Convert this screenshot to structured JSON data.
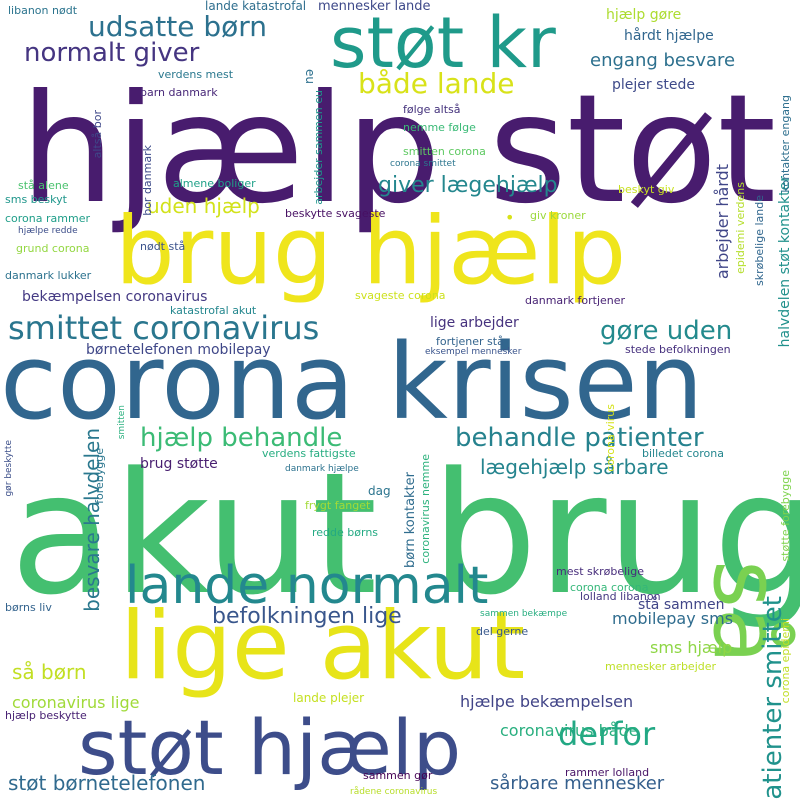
{
  "words": [
    {
      "text": "hjælp støt",
      "size": 150,
      "color": "#481c6e",
      "rot": 0
    },
    {
      "text": "akut brug",
      "size": 168,
      "color": "#44bf70",
      "rot": 0
    },
    {
      "text": "corona krisen",
      "size": 104,
      "color": "#31668e",
      "rot": 0
    },
    {
      "text": "brug hjælp",
      "size": 94,
      "color": "#efe51c",
      "rot": 0
    },
    {
      "text": "lige akut",
      "size": 94,
      "color": "#e7e419",
      "rot": 0
    },
    {
      "text": "støt hjælp",
      "size": 76,
      "color": "#3d4d8a",
      "rot": 0
    },
    {
      "text": "støt kr",
      "size": 70,
      "color": "#1f9a8a",
      "rot": 0
    },
    {
      "text": "så",
      "size": 92,
      "color": "#7ad151",
      "rot": 90
    },
    {
      "text": "lande normalt",
      "size": 52,
      "color": "#23888e",
      "rot": 0
    },
    {
      "text": "smittet coronavirus",
      "size": 32,
      "color": "#2a768e",
      "rot": 0
    },
    {
      "text": "udsatte børn",
      "size": 28,
      "color": "#2c718e",
      "rot": 0
    },
    {
      "text": "normalt giver",
      "size": 26,
      "color": "#453581",
      "rot": 0
    },
    {
      "text": "både lande",
      "size": 28,
      "color": "#d8e219",
      "rot": 0
    },
    {
      "text": "derfor",
      "size": 32,
      "color": "#22a884",
      "rot": 0
    },
    {
      "text": "behandle patienter",
      "size": 26,
      "color": "#26828e",
      "rot": 0
    },
    {
      "text": "hjælp behandle",
      "size": 26,
      "color": "#3bbb75",
      "rot": 0
    },
    {
      "text": "gøre uden",
      "size": 26,
      "color": "#238a8d",
      "rot": 0
    },
    {
      "text": "giver lægehjælp",
      "size": 22,
      "color": "#24878e",
      "rot": 0
    },
    {
      "text": "befolkningen lige",
      "size": 22,
      "color": "#39568c",
      "rot": 0
    },
    {
      "text": "patienter smittet",
      "size": 26,
      "color": "#20928c",
      "rot": -90
    },
    {
      "text": "besvare halvdelen",
      "size": 20,
      "color": "#2a788e",
      "rot": -90
    },
    {
      "text": "lægehjælp sårbare",
      "size": 20,
      "color": "#25848e",
      "rot": 0
    },
    {
      "text": "engang besvare",
      "size": 18,
      "color": "#2d708e",
      "rot": 0
    },
    {
      "text": "uden hjælp",
      "size": 20,
      "color": "#d2e21b",
      "rot": 0
    },
    {
      "text": "så børn",
      "size": 20,
      "color": "#c2df23",
      "rot": 0
    },
    {
      "text": "støt børnetelefonen",
      "size": 20,
      "color": "#306a8e",
      "rot": 0
    },
    {
      "text": "sårbare mennesker",
      "size": 18,
      "color": "#355f8d",
      "rot": 0
    },
    {
      "text": "coronavirus både",
      "size": 16,
      "color": "#29af7f",
      "rot": 0
    },
    {
      "text": "hjælpe bekæmpelsen",
      "size": 16,
      "color": "#414487",
      "rot": 0
    },
    {
      "text": "coronavirus lige",
      "size": 16,
      "color": "#a0da39",
      "rot": 0
    },
    {
      "text": "mobilepay sms",
      "size": 16,
      "color": "#2f6c8e",
      "rot": 0
    },
    {
      "text": "sms hjælp",
      "size": 16,
      "color": "#8ed645",
      "rot": 0
    },
    {
      "text": "stå sammen",
      "size": 14,
      "color": "#404588",
      "rot": 0
    },
    {
      "text": "bekæmpelsen coronavirus",
      "size": 14,
      "color": "#443983",
      "rot": 0
    },
    {
      "text": "børnetelefonen mobilepay",
      "size": 14,
      "color": "#3f4788",
      "rot": 0
    },
    {
      "text": "brug støtte",
      "size": 14,
      "color": "#481f70",
      "rot": 0
    },
    {
      "text": "lige arbejder",
      "size": 14,
      "color": "#46327e",
      "rot": 0
    },
    {
      "text": "arbejder hårdt",
      "size": 16,
      "color": "#404688",
      "rot": -90
    },
    {
      "text": "halvdelen støt kontakter",
      "size": 14,
      "color": "#21918c",
      "rot": -90
    },
    {
      "text": "hjælp gøre",
      "size": 14,
      "color": "#addc30",
      "rot": 0
    },
    {
      "text": "hårdt hjælpe",
      "size": 14,
      "color": "#31668e",
      "rot": 0
    },
    {
      "text": "plejer stede",
      "size": 14,
      "color": "#3e4a89",
      "rot": 0
    },
    {
      "text": "mennesker lande",
      "size": 13,
      "color": "#3e4989",
      "rot": 0
    },
    {
      "text": "lande katastrofal",
      "size": 12,
      "color": "#2e6e8e",
      "rot": 0
    },
    {
      "text": "libanon nødt",
      "size": 11,
      "color": "#2b748e",
      "rot": 0
    },
    {
      "text": "verdens mest",
      "size": 11,
      "color": "#2a788e",
      "rot": 0
    },
    {
      "text": "barn danmark",
      "size": 11,
      "color": "#482878",
      "rot": 0
    },
    {
      "text": "altså bor",
      "size": 11,
      "color": "#3f4889",
      "rot": -90
    },
    {
      "text": "bor danmark",
      "size": 11,
      "color": "#3e4c8a",
      "rot": -90
    },
    {
      "text": "eu",
      "size": 12,
      "color": "#2d708e",
      "rot": 90
    },
    {
      "text": "arbejder sammen eu",
      "size": 11,
      "color": "#1f958b",
      "rot": -90
    },
    {
      "text": "følge altså",
      "size": 11,
      "color": "#45337d",
      "rot": 0
    },
    {
      "text": "nemme følge",
      "size": 11,
      "color": "#3aba76",
      "rot": 0
    },
    {
      "text": "smitten corona",
      "size": 11,
      "color": "#5ec962",
      "rot": 0
    },
    {
      "text": "corona smittet",
      "size": 9,
      "color": "#2b758e",
      "rot": 0
    },
    {
      "text": "almene boliger",
      "size": 11,
      "color": "#1fa088",
      "rot": 0
    },
    {
      "text": "stå alene",
      "size": 11,
      "color": "#4ac16d",
      "rot": 0
    },
    {
      "text": "sms beskyt",
      "size": 11,
      "color": "#1f968b",
      "rot": 0
    },
    {
      "text": "corona rammer",
      "size": 11,
      "color": "#1f9e89",
      "rot": 0
    },
    {
      "text": "hjælpe redde",
      "size": 9,
      "color": "#3d4e8a",
      "rot": 0
    },
    {
      "text": "grund corona",
      "size": 11,
      "color": "#93d741",
      "rot": 0
    },
    {
      "text": "nødt stå",
      "size": 11,
      "color": "#3b528b",
      "rot": 0
    },
    {
      "text": "beskytte svageste",
      "size": 11,
      "color": "#471063",
      "rot": 0
    },
    {
      "text": "giv kroner",
      "size": 11,
      "color": "#9bd93c",
      "rot": 0
    },
    {
      "text": "beskyt giv",
      "size": 11,
      "color": "#c8e020",
      "rot": 0
    },
    {
      "text": "epidemi verdens",
      "size": 11,
      "color": "#b5de2b",
      "rot": -90
    },
    {
      "text": "skrøbelige lande",
      "size": 11,
      "color": "#31678e",
      "rot": -90
    },
    {
      "text": "kontakter engang",
      "size": 11,
      "color": "#2e6f8e",
      "rot": -90
    },
    {
      "text": "danmark lukker",
      "size": 11,
      "color": "#2c728e",
      "rot": 0
    },
    {
      "text": "svageste corona",
      "size": 11,
      "color": "#cde11d",
      "rot": 0
    },
    {
      "text": "danmark fortjener",
      "size": 11,
      "color": "#482374",
      "rot": 0
    },
    {
      "text": "katastrofal akut",
      "size": 11,
      "color": "#24878e",
      "rot": 0
    },
    {
      "text": "fortjener stå",
      "size": 11,
      "color": "#33638d",
      "rot": 0
    },
    {
      "text": "eksempel mennesker",
      "size": 9,
      "color": "#3a548c",
      "rot": 0
    },
    {
      "text": "stede befolkningen",
      "size": 11,
      "color": "#46307e",
      "rot": 0
    },
    {
      "text": "gør beskytte",
      "size": 9,
      "color": "#3c4f8a",
      "rot": -90
    },
    {
      "text": "smitten",
      "size": 9,
      "color": "#2ab07f",
      "rot": -90
    },
    {
      "text": "forebygge",
      "size": 11,
      "color": "#2a768e",
      "rot": -90
    },
    {
      "text": "verdens fattigste",
      "size": 11,
      "color": "#27ad81",
      "rot": 0
    },
    {
      "text": "danmark hjælpe",
      "size": 9,
      "color": "#2c728e",
      "rot": 0
    },
    {
      "text": "frygt fanget",
      "size": 11,
      "color": "#a2da37",
      "rot": 0
    },
    {
      "text": "dag",
      "size": 12,
      "color": "#2b748e",
      "rot": 0
    },
    {
      "text": "redde børns",
      "size": 11,
      "color": "#24aa83",
      "rot": 0
    },
    {
      "text": "børn kontakter",
      "size": 13,
      "color": "#2f6c8e",
      "rot": -90
    },
    {
      "text": "coronavirus nemme",
      "size": 11,
      "color": "#2db27d",
      "rot": -90
    },
    {
      "text": "corona virus",
      "size": 11,
      "color": "#d5e21a",
      "rot": -90
    },
    {
      "text": "billedet corona",
      "size": 11,
      "color": "#24868e",
      "rot": 0
    },
    {
      "text": "støtte forebygge",
      "size": 11,
      "color": "#7fd34e",
      "rot": -90
    },
    {
      "text": "corona epidemi",
      "size": 11,
      "color": "#c0df25",
      "rot": -90
    },
    {
      "text": "mest skrøbelige",
      "size": 11,
      "color": "#472d7b",
      "rot": 0
    },
    {
      "text": "corona corona",
      "size": 11,
      "color": "#35b779",
      "rot": 0
    },
    {
      "text": "lolland libanon",
      "size": 11,
      "color": "#453882",
      "rot": 0
    },
    {
      "text": "børns liv",
      "size": 11,
      "color": "#33638d",
      "rot": 0
    },
    {
      "text": "sammen bekæmpe",
      "size": 9,
      "color": "#28ae80",
      "rot": 0
    },
    {
      "text": "del gerne",
      "size": 11,
      "color": "#38588c",
      "rot": 0
    },
    {
      "text": "mennesker arbejder",
      "size": 11,
      "color": "#bddf26",
      "rot": 0
    },
    {
      "text": "lande plejer",
      "size": 12,
      "color": "#c5e021",
      "rot": 0
    },
    {
      "text": "hjælp beskytte",
      "size": 11,
      "color": "#482173",
      "rot": 0
    },
    {
      "text": "sammen gør",
      "size": 11,
      "color": "#440154",
      "rot": 0
    },
    {
      "text": "rådene coronavirus",
      "size": 9,
      "color": "#b8de29",
      "rot": 0
    },
    {
      "text": "rammer lolland",
      "size": 11,
      "color": "#481467",
      "rot": 0
    },
    {
      "text": "•",
      "size": 16,
      "color": "#d8e219",
      "rot": 0
    }
  ]
}
